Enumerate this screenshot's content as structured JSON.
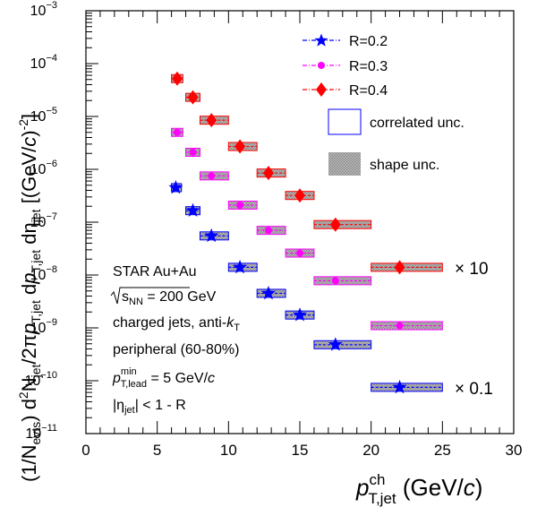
{
  "chart_data": {
    "type": "scatter",
    "x_axis": {
      "label": "p",
      "label_sup": "ch",
      "label_sub": "T,jet",
      "label_unit": " (GeV/",
      "label_unit_it": "c",
      "label_unit_end": ")",
      "range": [
        0,
        30
      ],
      "ticks": [
        0,
        5,
        10,
        15,
        20,
        25,
        30
      ],
      "tick_labels": [
        "0",
        "5",
        "10",
        "15",
        "20",
        "25",
        "30"
      ],
      "scale": "linear"
    },
    "y_axis": {
      "label": "(1/N_evts) d²N_jet/2πp_T,jet dp_T,jet dη_jet [(GeV/c)⁻²]",
      "range": [
        1e-11,
        0.001
      ],
      "scale": "log",
      "decades": [
        -11,
        -10,
        -9,
        -8,
        -7,
        -6,
        -5,
        -4,
        -3
      ],
      "tick_labels": [
        "10",
        "10",
        "10",
        "10",
        "10",
        "10",
        "10",
        "10",
        "10"
      ],
      "tick_exponents": [
        "−11",
        "−10",
        "−9",
        "−8",
        "−7",
        "−6",
        "−5",
        "−4",
        "−3"
      ]
    },
    "series": [
      {
        "name": "R=0.2",
        "color": "#0000ff",
        "marker": "star",
        "scale_label": "× 0.1",
        "points": [
          {
            "x": 6.3,
            "x_low": 6.0,
            "x_high": 6.7,
            "y": 4.5e-07
          },
          {
            "x": 7.5,
            "x_low": 7.0,
            "x_high": 8.0,
            "y": 1.65e-07
          },
          {
            "x": 8.8,
            "x_low": 8.0,
            "x_high": 10.0,
            "y": 5.5e-08
          },
          {
            "x": 10.8,
            "x_low": 10.0,
            "x_high": 12.0,
            "y": 1.4e-08
          },
          {
            "x": 12.8,
            "x_low": 12.0,
            "x_high": 14.0,
            "y": 4.5e-09
          },
          {
            "x": 15.0,
            "x_low": 14.0,
            "x_high": 16.0,
            "y": 1.75e-09
          },
          {
            "x": 17.5,
            "x_low": 16.0,
            "x_high": 20.0,
            "y": 4.8e-10
          },
          {
            "x": 22.0,
            "x_low": 20.0,
            "x_high": 25.0,
            "y": 7.5e-11
          }
        ]
      },
      {
        "name": "R=0.3",
        "color": "#ff00ff",
        "marker": "circle",
        "scale_label": "",
        "points": [
          {
            "x": 6.4,
            "x_low": 6.0,
            "x_high": 6.8,
            "y": 5e-06
          },
          {
            "x": 7.5,
            "x_low": 7.0,
            "x_high": 8.0,
            "y": 2.1e-06
          },
          {
            "x": 8.8,
            "x_low": 8.0,
            "x_high": 10.0,
            "y": 7.5e-07
          },
          {
            "x": 10.8,
            "x_low": 10.0,
            "x_high": 12.0,
            "y": 2.1e-07
          },
          {
            "x": 12.8,
            "x_low": 12.0,
            "x_high": 14.0,
            "y": 7e-08
          },
          {
            "x": 15.0,
            "x_low": 14.0,
            "x_high": 16.0,
            "y": 2.6e-08
          },
          {
            "x": 17.5,
            "x_low": 16.0,
            "x_high": 20.0,
            "y": 7.8e-09
          },
          {
            "x": 22.0,
            "x_low": 20.0,
            "x_high": 25.0,
            "y": 1.1e-09
          }
        ]
      },
      {
        "name": "R=0.4",
        "color": "#ff0000",
        "marker": "diamond",
        "scale_label": "× 10",
        "points": [
          {
            "x": 6.4,
            "x_low": 6.0,
            "x_high": 6.8,
            "y": 5.2e-05
          },
          {
            "x": 7.5,
            "x_low": 7.0,
            "x_high": 8.0,
            "y": 2.3e-05
          },
          {
            "x": 8.8,
            "x_low": 8.0,
            "x_high": 10.0,
            "y": 8.5e-06
          },
          {
            "x": 10.8,
            "x_low": 10.0,
            "x_high": 12.0,
            "y": 2.7e-06
          },
          {
            "x": 12.8,
            "x_low": 12.0,
            "x_high": 14.0,
            "y": 8.5e-07
          },
          {
            "x": 15.0,
            "x_low": 14.0,
            "x_high": 16.0,
            "y": 3.2e-07
          },
          {
            "x": 17.5,
            "x_low": 16.0,
            "x_high": 20.0,
            "y": 9e-08
          },
          {
            "x": 22.0,
            "x_low": 20.0,
            "x_high": 25.0,
            "y": 1.4e-08
          }
        ]
      }
    ],
    "legend": {
      "placement": "top-right",
      "entries": [
        "R=0.2",
        "R=0.3",
        "R=0.4"
      ],
      "unc_correlated": "correlated unc.",
      "unc_shape": "shape unc."
    },
    "annotations": [
      "STAR Au+Au",
      "√s_NN = 200 GeV",
      "charged jets, anti-k_T",
      "peripheral (60-80%)",
      "p_T,lead^min = 5 GeV/c",
      "|η_jet| < 1 - R"
    ],
    "grid": false
  }
}
